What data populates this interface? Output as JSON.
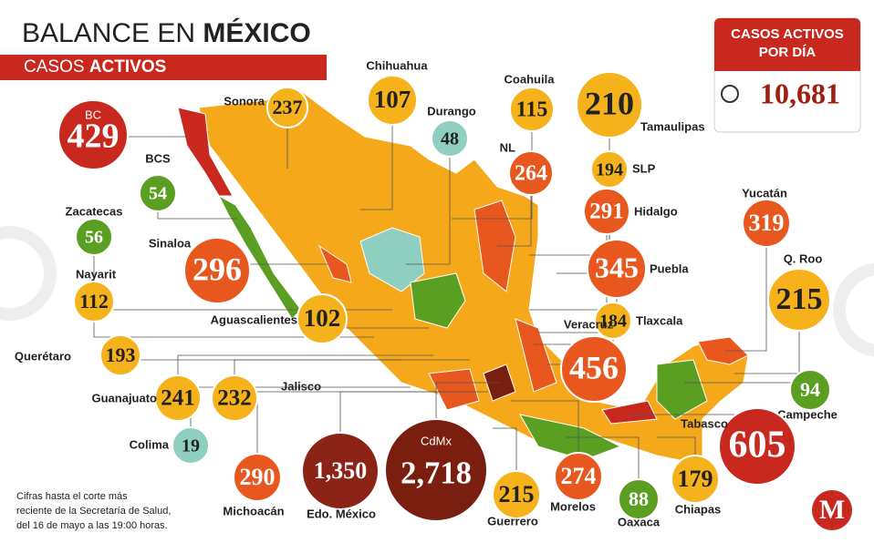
{
  "header": {
    "title_regular": "BALANCE EN",
    "title_bold": "MÉXICO",
    "subtitle_regular": "CASOS",
    "subtitle_bold": "ACTIVOS"
  },
  "daily_box": {
    "title_lines": [
      "CASOS ACTIVOS",
      "POR DÍA"
    ],
    "value": "10,681"
  },
  "states": [
    {
      "name": "BC",
      "value": "429",
      "color": "#c8281e"
    },
    {
      "name": "Sonora",
      "value": "237",
      "color": "#f5b21a"
    },
    {
      "name": "Chihuahua",
      "value": "107",
      "color": "#f5b21a"
    },
    {
      "name": "Durango",
      "value": "48",
      "color": "#8fcfbf"
    },
    {
      "name": "Coahuila",
      "value": "115",
      "color": "#f5b21a"
    },
    {
      "name": "Tamaulipas",
      "value": "210",
      "color": "#f5b21a"
    },
    {
      "name": "NL",
      "value": "264",
      "color": "#e8581e"
    },
    {
      "name": "SLP",
      "value": "194",
      "color": "#f5b21a"
    },
    {
      "name": "Hidalgo",
      "value": "291",
      "color": "#e8581e"
    },
    {
      "name": "Puebla",
      "value": "345",
      "color": "#e8581e"
    },
    {
      "name": "Tlaxcala",
      "value": "184",
      "color": "#f5b21a"
    },
    {
      "name": "Veracruz",
      "value": "456",
      "color": "#e8581e"
    },
    {
      "name": "Yucatán",
      "value": "319",
      "color": "#e8581e"
    },
    {
      "name": "Q. Roo",
      "value": "215",
      "color": "#f5b21a"
    },
    {
      "name": "Campeche",
      "value": "94",
      "color": "#5a9e22"
    },
    {
      "name": "Tabasco",
      "value": "605",
      "color": "#c8281e"
    },
    {
      "name": "BCS",
      "value": "54",
      "color": "#5a9e22"
    },
    {
      "name": "Zacatecas",
      "value": "56",
      "color": "#5a9e22"
    },
    {
      "name": "Sinaloa",
      "value": "296",
      "color": "#e8581e"
    },
    {
      "name": "Nayarit",
      "value": "112",
      "color": "#f5b21a"
    },
    {
      "name": "Aguascalientes",
      "value": "102",
      "color": "#f5b21a"
    },
    {
      "name": "Querétaro",
      "value": "193",
      "color": "#f5b21a"
    },
    {
      "name": "Guanajuato",
      "value": "241",
      "color": "#f5b21a"
    },
    {
      "name": "Jalisco",
      "value": "232",
      "color": "#f5b21a"
    },
    {
      "name": "Colima",
      "value": "19",
      "color": "#8fcfbf"
    },
    {
      "name": "Michoacán",
      "value": "290",
      "color": "#e8581e"
    },
    {
      "name": "Edo. México",
      "value": "1,350",
      "color": "#8b2416"
    },
    {
      "name": "CdMx",
      "value": "2,718",
      "color": "#7a1e10"
    },
    {
      "name": "Guerrero",
      "value": "215",
      "color": "#f5b21a"
    },
    {
      "name": "Morelos",
      "value": "274",
      "color": "#e8581e"
    },
    {
      "name": "Oaxaca",
      "value": "88",
      "color": "#5a9e22"
    },
    {
      "name": "Chiapas",
      "value": "179",
      "color": "#f5b21a"
    }
  ],
  "footnote": [
    "Cifras hasta el corte más",
    "reciente de la Secretaría de Salud,",
    "del 16 de mayo a las 19:00 horas."
  ],
  "logo": "M"
}
